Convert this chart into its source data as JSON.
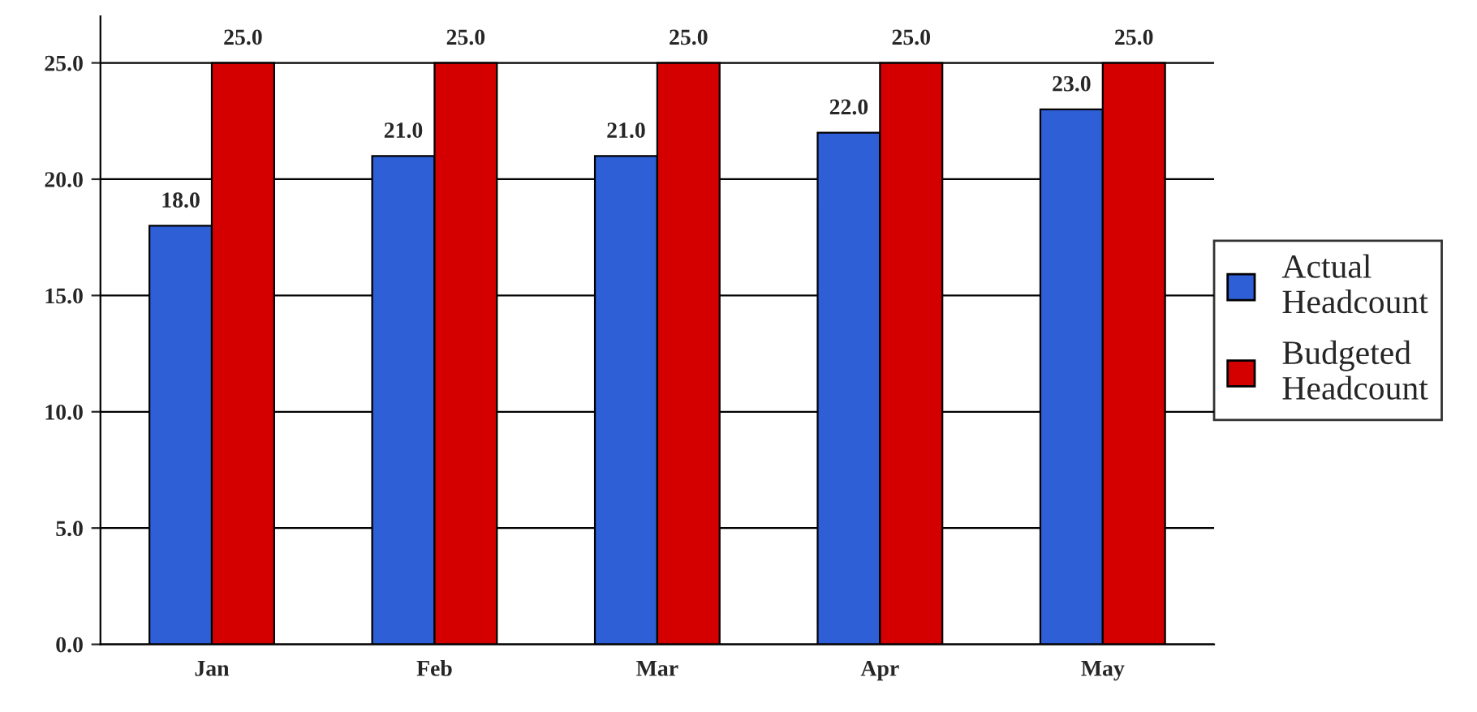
{
  "chart_data": {
    "type": "bar",
    "categories": [
      "Jan",
      "Feb",
      "Mar",
      "Apr",
      "May"
    ],
    "series": [
      {
        "name": "Actual Headcount",
        "color": "#2f5fd6",
        "values": [
          18,
          21,
          21,
          22,
          23
        ],
        "value_labels": [
          "18.0",
          "21.0",
          "21.0",
          "22.0",
          "23.0"
        ]
      },
      {
        "name": "Budgeted Headcount",
        "color": "#d40000",
        "values": [
          25,
          25,
          25,
          25,
          25
        ],
        "value_labels": [
          "25.0",
          "25.0",
          "25.0",
          "25.0",
          "25.0"
        ]
      }
    ],
    "ylim": [
      0,
      27
    ],
    "yticks": [
      {
        "value": 0,
        "label": "0.0"
      },
      {
        "value": 5,
        "label": "5.0"
      },
      {
        "value": 10,
        "label": "10.0"
      },
      {
        "value": 15,
        "label": "15.0"
      },
      {
        "value": 20,
        "label": "20.0"
      },
      {
        "value": 25,
        "label": "25.0"
      }
    ],
    "grid": "y",
    "legend": "right"
  }
}
